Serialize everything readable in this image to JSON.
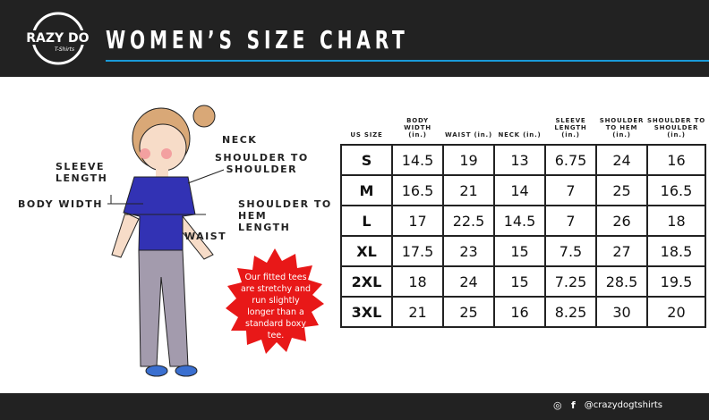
{
  "header": {
    "title": "WOMEN’S SIZE CHART",
    "logo_text": "CRAZY DOG T-Shirts",
    "accent": "#1a9ad8"
  },
  "labels": {
    "neck": "NECK",
    "shoulder_to_shoulder": "SHOULDER TO\nSHOULDER",
    "sleeve_length": "SLEEVE\nLENGTH",
    "body_width": "BODY WIDTH",
    "shoulder_to_hem": "SHOULDER TO\nHEM\nLENGTH",
    "waist": "WAIST"
  },
  "callout": "Our fitted tees are stretchy and run slightly longer than a standard boxy tee.",
  "table": {
    "headers": [
      "US SIZE",
      "BODY\nWIDTH\n(in.)",
      "WAIST (in.)",
      "NECK (in.)",
      "SLEEVE\nLENGTH\n(in.)",
      "SHOULDER\nTO HEM\n(in.)",
      "SHOULDER TO\nSHOULDER\n(in.)"
    ],
    "rows": [
      [
        "S",
        "14.5",
        "19",
        "13",
        "6.75",
        "24",
        "16"
      ],
      [
        "M",
        "16.5",
        "21",
        "14",
        "7",
        "25",
        "16.5"
      ],
      [
        "L",
        "17",
        "22.5",
        "14.5",
        "7",
        "26",
        "18"
      ],
      [
        "XL",
        "17.5",
        "23",
        "15",
        "7.5",
        "27",
        "18.5"
      ],
      [
        "2XL",
        "18",
        "24",
        "15",
        "7.25",
        "28.5",
        "19.5"
      ],
      [
        "3XL",
        "21",
        "25",
        "16",
        "8.25",
        "30",
        "20"
      ]
    ]
  },
  "footer": {
    "handle": "@crazydogtshirts",
    "icons": [
      "instagram-icon",
      "facebook-icon"
    ]
  }
}
